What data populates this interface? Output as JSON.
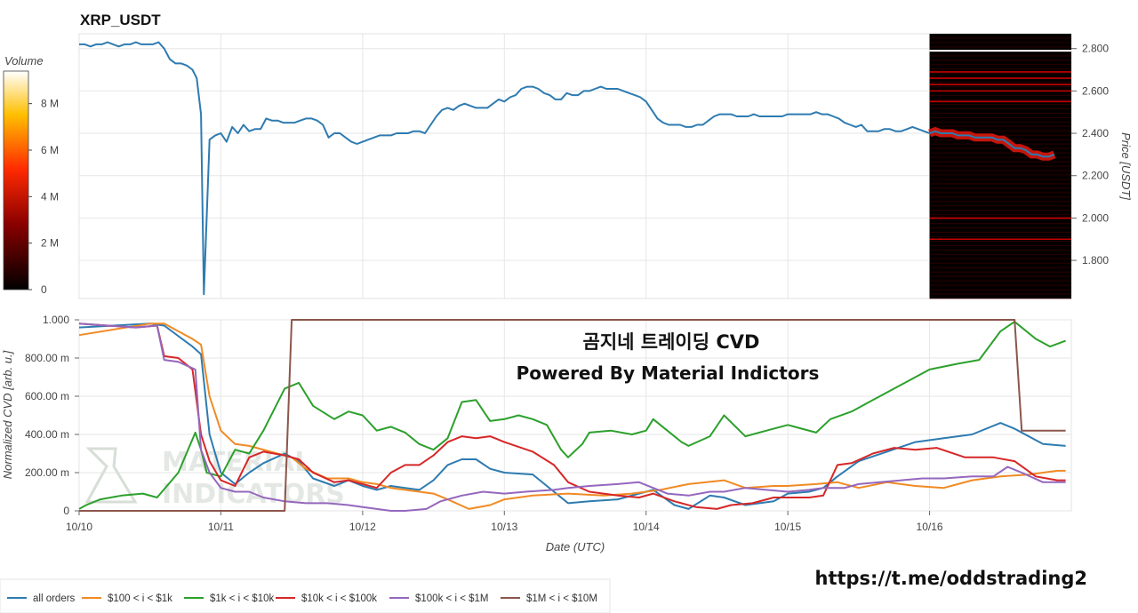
{
  "chart_data": [
    {
      "type": "line",
      "title": "XRP_USDT",
      "ylabel": "Price [USDT]",
      "ylim": [
        1.62,
        2.87
      ],
      "yticks": [
        "1.800",
        "2.000",
        "2.200",
        "2.400",
        "2.600",
        "2.800"
      ],
      "ytick_values": [
        1.8,
        2.0,
        2.2,
        2.4,
        2.6,
        2.8
      ],
      "xlim": [
        0,
        7.0
      ],
      "x_gridlines": [
        1,
        2,
        3,
        4,
        5,
        6
      ],
      "price_color": "#2e7bb0",
      "price_x": [
        0,
        0.04,
        0.08,
        0.12,
        0.16,
        0.2,
        0.24,
        0.28,
        0.32,
        0.36,
        0.4,
        0.44,
        0.48,
        0.52,
        0.56,
        0.6,
        0.64,
        0.68,
        0.72,
        0.76,
        0.8,
        0.83,
        0.86,
        0.88,
        0.92,
        0.96,
        1.0,
        1.04,
        1.08,
        1.12,
        1.16,
        1.2,
        1.24,
        1.28,
        1.32,
        1.36,
        1.4,
        1.44,
        1.48,
        1.52,
        1.56,
        1.6,
        1.64,
        1.68,
        1.72,
        1.76,
        1.8,
        1.84,
        1.88,
        1.92,
        1.96,
        2.0,
        2.04,
        2.08,
        2.12,
        2.16,
        2.2,
        2.24,
        2.28,
        2.32,
        2.36,
        2.4,
        2.44,
        2.48,
        2.52,
        2.56,
        2.6,
        2.64,
        2.68,
        2.72,
        2.76,
        2.8,
        2.84,
        2.88,
        2.92,
        2.96,
        3.0,
        3.04,
        3.08,
        3.12,
        3.16,
        3.2,
        3.24,
        3.28,
        3.32,
        3.36,
        3.4,
        3.44,
        3.48,
        3.52,
        3.56,
        3.6,
        3.64,
        3.68,
        3.72,
        3.76,
        3.8,
        3.84,
        3.88,
        3.92,
        3.96,
        4.0,
        4.04,
        4.08,
        4.12,
        4.16,
        4.2,
        4.24,
        4.28,
        4.32,
        4.36,
        4.4,
        4.44,
        4.48,
        4.52,
        4.56,
        4.6,
        4.64,
        4.68,
        4.72,
        4.76,
        4.8,
        4.84,
        4.88,
        4.92,
        4.96,
        5.0,
        5.04,
        5.08,
        5.12,
        5.16,
        5.2,
        5.24,
        5.28,
        5.32,
        5.36,
        5.4,
        5.44,
        5.48,
        5.52,
        5.56,
        5.6,
        5.64,
        5.68,
        5.72,
        5.76,
        5.8,
        5.84,
        5.88,
        5.92,
        5.96,
        6.0,
        6.04,
        6.08,
        6.12,
        6.16,
        6.2,
        6.24,
        6.28,
        6.32,
        6.36,
        6.4,
        6.44,
        6.48,
        6.52,
        6.56,
        6.6,
        6.64,
        6.68,
        6.72,
        6.76,
        6.8,
        6.84,
        6.88,
        6.92,
        6.96
      ],
      "price_y": [
        2.82,
        2.82,
        2.81,
        2.82,
        2.82,
        2.83,
        2.82,
        2.81,
        2.82,
        2.82,
        2.83,
        2.82,
        2.82,
        2.82,
        2.83,
        2.8,
        2.75,
        2.73,
        2.73,
        2.72,
        2.7,
        2.66,
        2.49,
        1.64,
        2.37,
        2.39,
        2.4,
        2.36,
        2.43,
        2.4,
        2.44,
        2.41,
        2.42,
        2.42,
        2.47,
        2.46,
        2.46,
        2.45,
        2.45,
        2.45,
        2.46,
        2.47,
        2.47,
        2.46,
        2.44,
        2.38,
        2.4,
        2.4,
        2.38,
        2.36,
        2.35,
        2.36,
        2.37,
        2.38,
        2.39,
        2.39,
        2.39,
        2.4,
        2.4,
        2.4,
        2.41,
        2.41,
        2.4,
        2.44,
        2.48,
        2.51,
        2.52,
        2.51,
        2.53,
        2.54,
        2.53,
        2.52,
        2.52,
        2.52,
        2.54,
        2.56,
        2.55,
        2.57,
        2.58,
        2.61,
        2.62,
        2.62,
        2.61,
        2.59,
        2.58,
        2.56,
        2.56,
        2.59,
        2.58,
        2.58,
        2.6,
        2.6,
        2.61,
        2.62,
        2.61,
        2.61,
        2.61,
        2.6,
        2.59,
        2.58,
        2.57,
        2.55,
        2.51,
        2.47,
        2.45,
        2.44,
        2.44,
        2.44,
        2.43,
        2.43,
        2.44,
        2.44,
        2.46,
        2.48,
        2.49,
        2.49,
        2.49,
        2.48,
        2.48,
        2.48,
        2.49,
        2.48,
        2.48,
        2.48,
        2.48,
        2.48,
        2.49,
        2.49,
        2.49,
        2.49,
        2.49,
        2.5,
        2.49,
        2.49,
        2.48,
        2.47,
        2.45,
        2.44,
        2.43,
        2.44,
        2.41,
        2.41,
        2.41,
        2.42,
        2.42,
        2.41,
        2.41,
        2.42,
        2.43,
        2.42,
        2.41,
        2.4,
        2.41,
        2.4,
        2.4,
        2.4,
        2.39,
        2.39,
        2.39,
        2.38,
        2.38,
        2.38,
        2.38,
        2.37,
        2.37,
        2.35,
        2.33,
        2.33,
        2.32,
        2.3,
        2.3,
        2.29,
        2.29,
        2.3
      ],
      "heatmap": {
        "x_range": [
          6.0,
          7.0
        ],
        "high_volume_levels": [
          2.79,
          2.69,
          2.66,
          2.63,
          2.6,
          2.55,
          2.0,
          1.9
        ],
        "colorbar": {
          "title": "Volume",
          "ticks": [
            "0",
            "2 M",
            "4 M",
            "6 M",
            "8 M"
          ],
          "tick_values": [
            0,
            2,
            4,
            6,
            8
          ],
          "max": 9.4
        }
      }
    },
    {
      "type": "line",
      "xlabel": "Date (UTC)",
      "ylabel": "Normalized CVD [arb. u.]",
      "ylim": [
        0,
        1.0
      ],
      "xlim": [
        0,
        7.0
      ],
      "yticks": [
        "0",
        "200.00 m",
        "400.00 m",
        "600.00 m",
        "800.00 m",
        "1.000"
      ],
      "ytick_values": [
        0,
        0.2,
        0.4,
        0.6,
        0.8,
        1.0
      ],
      "xticks": [
        "10/10",
        "10/11",
        "10/12",
        "10/13",
        "10/14",
        "10/15",
        "10/16"
      ],
      "xtick_values": [
        0,
        1,
        2,
        3,
        4,
        5,
        6
      ],
      "series": [
        {
          "name": "all orders",
          "color": "#2e7bb0",
          "x": [
            0,
            0.5,
            0.6,
            0.8,
            0.86,
            0.92,
            1.0,
            1.1,
            1.2,
            1.3,
            1.45,
            1.55,
            1.65,
            1.8,
            1.9,
            2.0,
            2.1,
            2.2,
            2.3,
            2.4,
            2.5,
            2.6,
            2.7,
            2.8,
            2.9,
            3.0,
            3.2,
            3.35,
            3.45,
            3.6,
            3.8,
            3.95,
            4.05,
            4.2,
            4.3,
            4.45,
            4.55,
            4.7,
            4.9,
            5.0,
            5.15,
            5.25,
            5.35,
            5.5,
            5.7,
            5.9,
            6.1,
            6.3,
            6.5,
            6.6,
            6.8,
            6.96
          ],
          "values": [
            0.96,
            0.98,
            0.97,
            0.86,
            0.82,
            0.4,
            0.2,
            0.14,
            0.2,
            0.25,
            0.3,
            0.26,
            0.17,
            0.13,
            0.16,
            0.13,
            0.11,
            0.13,
            0.12,
            0.11,
            0.16,
            0.24,
            0.27,
            0.27,
            0.22,
            0.2,
            0.19,
            0.1,
            0.04,
            0.05,
            0.06,
            0.09,
            0.11,
            0.03,
            0.01,
            0.08,
            0.07,
            0.03,
            0.05,
            0.09,
            0.1,
            0.12,
            0.18,
            0.26,
            0.31,
            0.36,
            0.38,
            0.4,
            0.46,
            0.43,
            0.35,
            0.34
          ]
        },
        {
          "name": "$100 < i < $1k",
          "color": "#f08a24",
          "x": [
            0,
            0.5,
            0.6,
            0.8,
            0.86,
            0.92,
            1.0,
            1.1,
            1.2,
            1.35,
            1.5,
            1.6,
            1.75,
            1.9,
            2.0,
            2.1,
            2.2,
            2.4,
            2.5,
            2.6,
            2.75,
            2.9,
            3.0,
            3.2,
            3.45,
            3.7,
            3.9,
            4.0,
            4.1,
            4.3,
            4.55,
            4.7,
            4.9,
            5.0,
            5.2,
            5.35,
            5.5,
            5.7,
            5.9,
            6.1,
            6.3,
            6.5,
            6.7,
            6.9,
            6.96
          ],
          "values": [
            0.92,
            0.98,
            0.98,
            0.9,
            0.87,
            0.6,
            0.42,
            0.35,
            0.34,
            0.31,
            0.28,
            0.22,
            0.17,
            0.17,
            0.15,
            0.14,
            0.12,
            0.1,
            0.09,
            0.06,
            0.01,
            0.03,
            0.06,
            0.08,
            0.09,
            0.08,
            0.09,
            0.1,
            0.11,
            0.14,
            0.16,
            0.12,
            0.13,
            0.13,
            0.14,
            0.15,
            0.12,
            0.15,
            0.13,
            0.12,
            0.16,
            0.18,
            0.19,
            0.21,
            0.21
          ]
        },
        {
          "name": "$1k < i < $10k",
          "color": "#2ca02c",
          "x": [
            0,
            0.05,
            0.15,
            0.3,
            0.45,
            0.55,
            0.7,
            0.82,
            0.86,
            0.9,
            1.0,
            1.1,
            1.2,
            1.3,
            1.45,
            1.55,
            1.65,
            1.8,
            1.9,
            2.0,
            2.1,
            2.2,
            2.3,
            2.4,
            2.5,
            2.6,
            2.7,
            2.8,
            2.9,
            3.0,
            3.1,
            3.2,
            3.3,
            3.4,
            3.45,
            3.55,
            3.6,
            3.75,
            3.9,
            4.0,
            4.05,
            4.15,
            4.25,
            4.3,
            4.45,
            4.55,
            4.7,
            4.85,
            5.0,
            5.1,
            5.2,
            5.3,
            5.45,
            5.6,
            5.75,
            5.9,
            6.0,
            6.2,
            6.35,
            6.5,
            6.6,
            6.75,
            6.85,
            6.96
          ],
          "values": [
            0.01,
            0.03,
            0.06,
            0.08,
            0.09,
            0.07,
            0.2,
            0.41,
            0.32,
            0.2,
            0.18,
            0.32,
            0.3,
            0.42,
            0.64,
            0.67,
            0.55,
            0.48,
            0.52,
            0.5,
            0.42,
            0.44,
            0.41,
            0.35,
            0.32,
            0.38,
            0.57,
            0.58,
            0.47,
            0.48,
            0.5,
            0.48,
            0.45,
            0.32,
            0.28,
            0.35,
            0.41,
            0.42,
            0.4,
            0.42,
            0.48,
            0.42,
            0.36,
            0.34,
            0.39,
            0.5,
            0.39,
            0.42,
            0.45,
            0.43,
            0.41,
            0.48,
            0.52,
            0.58,
            0.64,
            0.7,
            0.74,
            0.77,
            0.79,
            0.94,
            0.99,
            0.9,
            0.86,
            0.89
          ]
        },
        {
          "name": "$10k < i < $100k",
          "color": "#d62728",
          "x": [
            0,
            0.2,
            0.4,
            0.55,
            0.6,
            0.7,
            0.8,
            0.86,
            0.92,
            1.0,
            1.1,
            1.2,
            1.3,
            1.45,
            1.55,
            1.65,
            1.8,
            1.9,
            2.0,
            2.1,
            2.2,
            2.3,
            2.4,
            2.5,
            2.6,
            2.7,
            2.8,
            2.9,
            3.0,
            3.2,
            3.35,
            3.45,
            3.6,
            3.8,
            3.95,
            4.05,
            4.2,
            4.35,
            4.5,
            4.6,
            4.75,
            4.9,
            5.0,
            5.15,
            5.25,
            5.35,
            5.45,
            5.6,
            5.75,
            5.9,
            6.05,
            6.25,
            6.45,
            6.6,
            6.75,
            6.9,
            6.96
          ],
          "values": [
            0.98,
            0.97,
            0.96,
            0.97,
            0.81,
            0.8,
            0.74,
            0.4,
            0.26,
            0.16,
            0.13,
            0.28,
            0.31,
            0.29,
            0.27,
            0.2,
            0.15,
            0.16,
            0.14,
            0.12,
            0.2,
            0.24,
            0.24,
            0.29,
            0.36,
            0.39,
            0.38,
            0.39,
            0.36,
            0.31,
            0.24,
            0.15,
            0.1,
            0.08,
            0.07,
            0.09,
            0.05,
            0.02,
            0.01,
            0.03,
            0.04,
            0.07,
            0.07,
            0.07,
            0.08,
            0.24,
            0.25,
            0.3,
            0.33,
            0.32,
            0.33,
            0.28,
            0.28,
            0.26,
            0.18,
            0.16,
            0.16
          ]
        },
        {
          "name": "$100k < i < $1M",
          "color": "#9467bd",
          "x": [
            0,
            0.2,
            0.4,
            0.55,
            0.6,
            0.7,
            0.82,
            0.86,
            0.92,
            1.0,
            1.1,
            1.2,
            1.3,
            1.45,
            1.6,
            1.75,
            1.9,
            2.0,
            2.1,
            2.2,
            2.3,
            2.45,
            2.55,
            2.7,
            2.85,
            3.0,
            3.15,
            3.35,
            3.45,
            3.6,
            3.8,
            3.95,
            4.05,
            4.15,
            4.3,
            4.45,
            4.55,
            4.7,
            4.85,
            5.0,
            5.15,
            5.25,
            5.4,
            5.5,
            5.65,
            5.8,
            5.95,
            6.1,
            6.3,
            6.45,
            6.55,
            6.65,
            6.8,
            6.96
          ],
          "values": [
            0.98,
            0.97,
            0.96,
            0.97,
            0.79,
            0.78,
            0.74,
            0.32,
            0.2,
            0.12,
            0.1,
            0.1,
            0.07,
            0.05,
            0.04,
            0.04,
            0.03,
            0.02,
            0.01,
            0.0,
            0.0,
            0.01,
            0.05,
            0.08,
            0.1,
            0.09,
            0.1,
            0.11,
            0.12,
            0.13,
            0.14,
            0.15,
            0.12,
            0.09,
            0.08,
            0.1,
            0.1,
            0.12,
            0.11,
            0.1,
            0.11,
            0.12,
            0.12,
            0.14,
            0.15,
            0.16,
            0.17,
            0.17,
            0.18,
            0.18,
            0.23,
            0.2,
            0.15,
            0.15
          ]
        },
        {
          "name": "$1M < i < $10M",
          "color": "#8c564b",
          "x": [
            0,
            1.45,
            1.5,
            6.6,
            6.65,
            6.96
          ],
          "values": [
            0,
            0,
            1.0,
            1.0,
            0.42,
            0.42
          ]
        }
      ],
      "annotations": [
        "곰지네 트레이딩 CVD",
        "Powered By Material Indictors"
      ],
      "watermark": [
        "MATERIAL",
        "INDICATORS"
      ],
      "legend_position": "bottom-left"
    }
  ],
  "footer_link": "https://t.me/oddstrading2"
}
